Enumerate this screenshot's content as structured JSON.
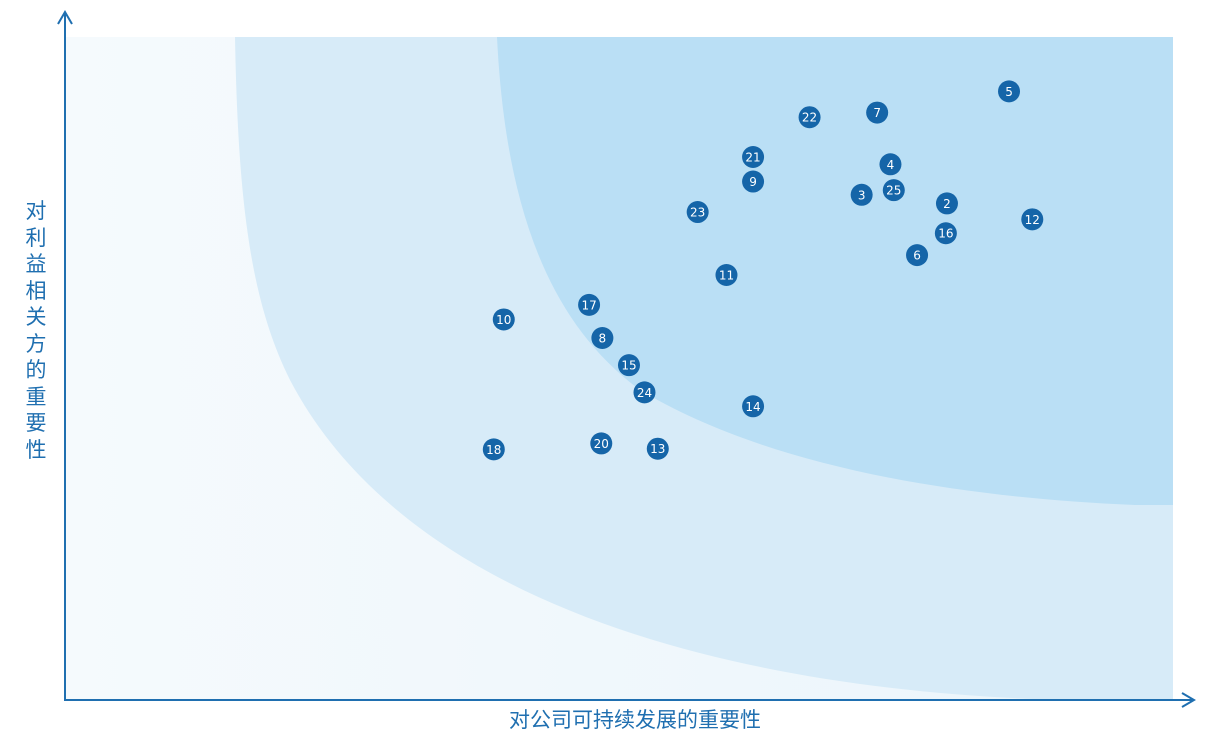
{
  "chart_data": {
    "type": "scatter",
    "title": "",
    "xlabel": "对公司可持续发展的重要性",
    "ylabel": "对利益相关方的重要性",
    "xlim": [
      0,
      100
    ],
    "ylim": [
      0,
      100
    ],
    "grid": false,
    "legend": "none",
    "colors": {
      "axis": "#1f6fb0",
      "point": "#1565a8",
      "point_text": "#ffffff",
      "zone_low": "#f0f7fc",
      "zone_mid": "#d5eaf7",
      "zone_high": "#b7ddf3"
    },
    "points": [
      {
        "label": "5",
        "x": 85.2,
        "y": 91.8
      },
      {
        "label": "7",
        "x": 73.3,
        "y": 88.6
      },
      {
        "label": "22",
        "x": 67.2,
        "y": 87.9
      },
      {
        "label": "21",
        "x": 62.1,
        "y": 81.9
      },
      {
        "label": "4",
        "x": 74.5,
        "y": 80.8
      },
      {
        "label": "9",
        "x": 62.1,
        "y": 78.2
      },
      {
        "label": "25",
        "x": 74.8,
        "y": 76.9
      },
      {
        "label": "3",
        "x": 71.9,
        "y": 76.2
      },
      {
        "label": "2",
        "x": 79.6,
        "y": 74.9
      },
      {
        "label": "23",
        "x": 57.1,
        "y": 73.6
      },
      {
        "label": "12",
        "x": 87.3,
        "y": 72.5
      },
      {
        "label": "16",
        "x": 79.5,
        "y": 70.4
      },
      {
        "label": "6",
        "x": 76.9,
        "y": 67.1
      },
      {
        "label": "11",
        "x": 59.7,
        "y": 64.1
      },
      {
        "label": "17",
        "x": 47.3,
        "y": 59.6
      },
      {
        "label": "10",
        "x": 39.6,
        "y": 57.4
      },
      {
        "label": "8",
        "x": 48.5,
        "y": 54.6
      },
      {
        "label": "15",
        "x": 50.9,
        "y": 50.5
      },
      {
        "label": "24",
        "x": 52.3,
        "y": 46.4
      },
      {
        "label": "14",
        "x": 62.1,
        "y": 44.3
      },
      {
        "label": "20",
        "x": 48.4,
        "y": 38.7
      },
      {
        "label": "13",
        "x": 53.5,
        "y": 37.9
      },
      {
        "label": "18",
        "x": 38.7,
        "y": 37.8
      }
    ]
  }
}
